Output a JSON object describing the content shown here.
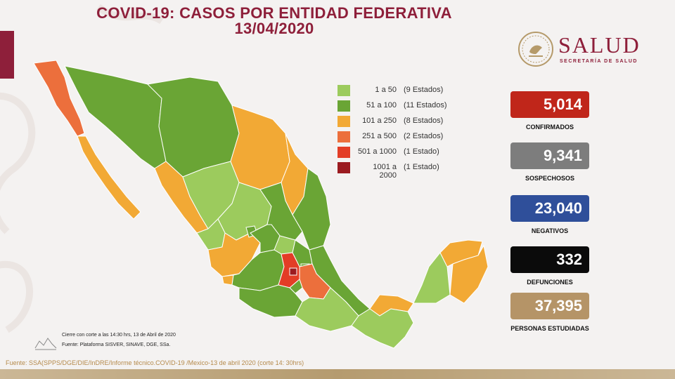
{
  "title": {
    "line1": "COVID-19: CASOS POR ENTIDAD FEDERATIVA",
    "line2": "13/04/2020"
  },
  "logo": {
    "word": "SALUD",
    "subtitle": "SECRETARÍA DE SALUD"
  },
  "legend": [
    {
      "range": "1 a 50",
      "count": "(9 Estados)",
      "color": "#9ccb5d"
    },
    {
      "range": "51 a 100",
      "count": "(11 Estados)",
      "color": "#6aa535"
    },
    {
      "range": "101 a 250",
      "count": "(8 Estados)",
      "color": "#f2a935"
    },
    {
      "range": "251 a 500",
      "count": "(2 Estados)",
      "color": "#ec6f3c"
    },
    {
      "range": "501 a 1000",
      "count": "(1 Estado)",
      "color": "#e33d26"
    },
    {
      "range": "1001 a 2000",
      "count": "(1 Estado)",
      "color": "#9b1b20"
    }
  ],
  "stats": [
    {
      "value": "5,014",
      "label": "CONFIRMADOS",
      "color": "#c0261a"
    },
    {
      "value": "9,341",
      "label": "SOSPECHOSOS",
      "color": "#7d7d7d"
    },
    {
      "value": "23,040",
      "label": "NEGATIVOS",
      "color": "#2f4f9a"
    },
    {
      "value": "332",
      "label": "DEFUNCIONES",
      "color": "#0b0b0b"
    },
    {
      "value": "37,395",
      "label": "PERSONAS ESTUDIADAS",
      "color": "#b59467"
    }
  ],
  "footnotes": {
    "line1": "Cierre con corte a las 14:30 hrs, 13 de Abril de 2020",
    "line2": "Fuente: Plataforma SISVER, SINAVE, DGE, SSa."
  },
  "source": "Fuente: SSA(SPPS/DGE/DIE/InDRE/Informe técnico.COVID-19 /Mexico-13 de abril 2020 (corte 14: 30hrs)",
  "colors": {
    "brand": "#8e1f3a",
    "range_1_50": "#9ccb5d",
    "range_51_100": "#6aa535",
    "range_101_250": "#f2a935",
    "range_251_500": "#ec6f3c",
    "range_501_1000": "#e33d26",
    "range_1001_2000": "#9b1b20"
  }
}
